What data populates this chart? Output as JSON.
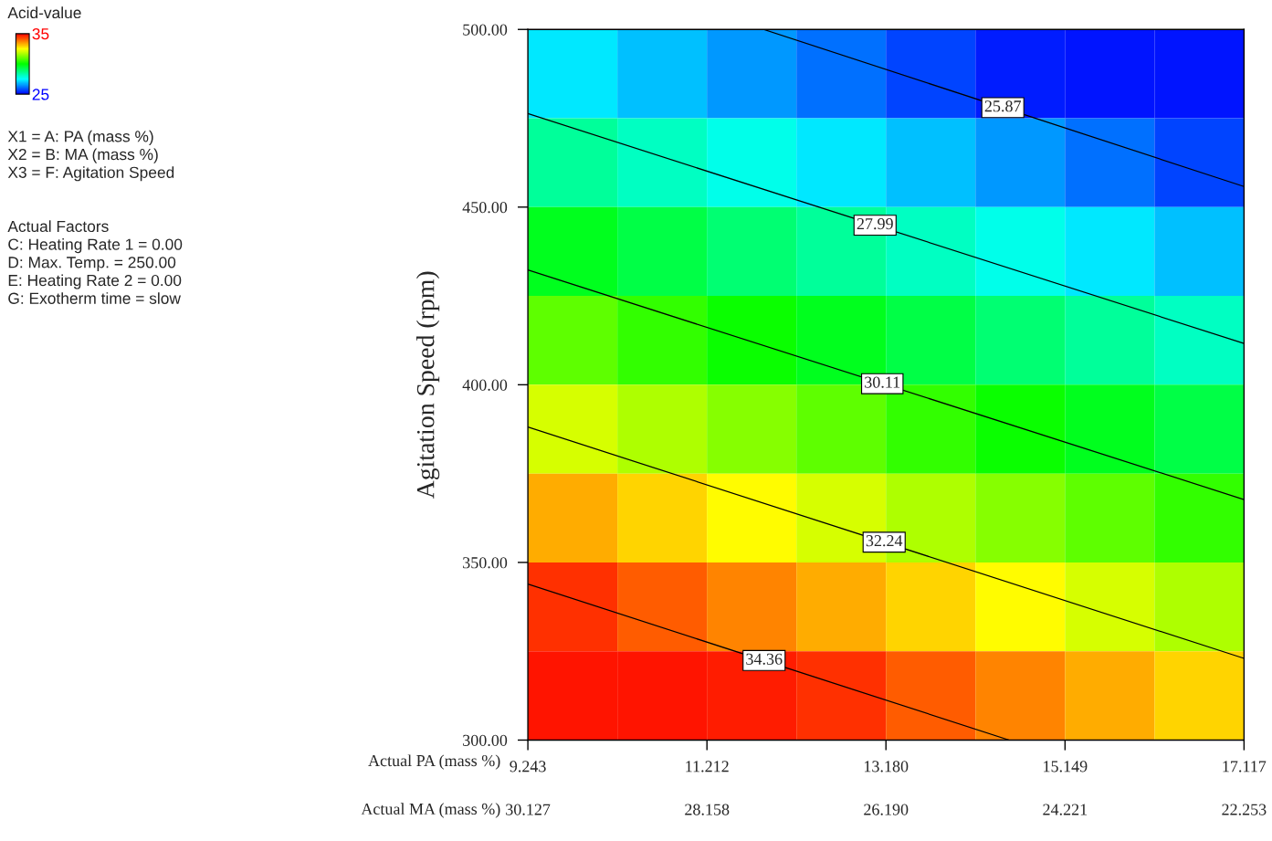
{
  "chart_data": {
    "type": "heatmap",
    "ylabel": "Agitation Speed (rpm)",
    "xlabel": "Actual PA (mass %)",
    "x2label": "Actual MA (mass %)",
    "clabel": "Acid-value",
    "clim": [
      25,
      35
    ],
    "cticks": [
      25,
      35
    ],
    "xlim": [
      9.243,
      17.117
    ],
    "xticks": [
      9.243,
      11.212,
      {
        "value": 13.18,
        "label": "13.180"
      },
      15.149,
      17.117
    ],
    "x2lim": [
      30.127,
      22.253
    ],
    "x2ticks": [
      30.127,
      28.158,
      {
        "value": 26.19,
        "label": "26.190"
      },
      24.221,
      22.253
    ],
    "ylim": [
      300,
      500
    ],
    "yticks": [
      {
        "value": 300,
        "label": "300.00"
      },
      {
        "value": 350,
        "label": "350.00"
      },
      {
        "value": 400,
        "label": "400.00"
      },
      {
        "value": 450,
        "label": "450.00"
      },
      {
        "value": 500,
        "label": "500.00"
      }
    ],
    "cells": [
      [
        27.3,
        26.9,
        26.5,
        26.1,
        25.7,
        25.3,
        25.2,
        25.2
      ],
      [
        28.5,
        28.1,
        27.7,
        27.3,
        26.9,
        26.5,
        26.1,
        25.7
      ],
      [
        29.7,
        29.3,
        28.9,
        28.5,
        28.1,
        27.7,
        27.3,
        26.9
      ],
      [
        30.9,
        30.5,
        30.1,
        29.7,
        29.3,
        28.9,
        28.5,
        28.1
      ],
      [
        32.1,
        31.7,
        31.3,
        30.9,
        30.5,
        30.1,
        29.7,
        29.3
      ],
      [
        33.3,
        32.9,
        32.5,
        32.1,
        31.7,
        31.3,
        30.9,
        30.5
      ],
      [
        34.5,
        34.1,
        33.7,
        33.3,
        32.9,
        32.5,
        32.1,
        31.7
      ],
      [
        34.8,
        34.8,
        34.7,
        34.5,
        34.1,
        33.7,
        33.3,
        32.9
      ]
    ],
    "series": [
      {
        "type": "line",
        "color": "#000000",
        "x": [
          11.834,
          17.117
        ],
        "values": [
          500,
          455.8
        ]
      },
      {
        "type": "line",
        "color": "#000000",
        "x": [
          9.243,
          17.117
        ],
        "values": [
          476.3,
          411.6
        ]
      },
      {
        "type": "line",
        "color": "#000000",
        "x": [
          9.243,
          17.117
        ],
        "values": [
          432.3,
          367.7
        ]
      },
      {
        "type": "line",
        "color": "#000000",
        "x": [
          9.243,
          17.117
        ],
        "values": [
          388.1,
          323.0
        ]
      },
      {
        "type": "line",
        "color": "#000000",
        "x": [
          9.243,
          14.536
        ],
        "values": [
          343.9,
          300
        ]
      }
    ],
    "annotations": [
      {
        "text": "25.87",
        "x": 14.465,
        "y": 478.0
      },
      {
        "text": "27.99",
        "x": 13.06,
        "y": 444.9
      },
      {
        "text": "30.11",
        "x": 13.14,
        "y": 400.3
      },
      {
        "text": "32.24",
        "x": 13.16,
        "y": 355.7
      },
      {
        "text": "34.36",
        "x": 11.84,
        "y": 322.4
      },
      "X1 = A: PA (mass %)\nX2 = B: MA (mass %)\nX3 = F: Agitation Speed",
      "Actual Factors\nC: Heating Rate 1 = 0.00\nD: Max. Temp. = 250.00\nE: Heating Rate 2 = 0.00\nG: Exotherm time = slow"
    ],
    "grid": false
  }
}
